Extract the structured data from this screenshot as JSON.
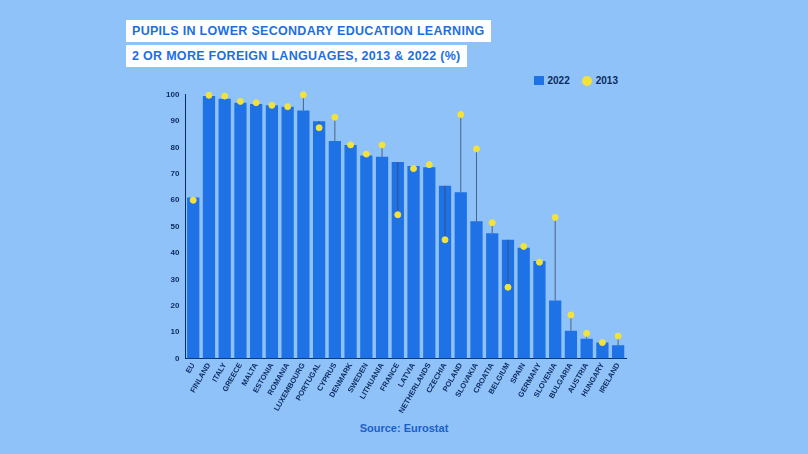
{
  "chart_data": {
    "type": "bar",
    "title": [
      "PUPILS IN LOWER SECONDARY EDUCATION LEARNING",
      "2 OR MORE FOREIGN LANGUAGES, 2013 & 2022 (%)"
    ],
    "source": "Source: Eurostat",
    "categories": [
      "EU",
      "FINLAND",
      "ITALY",
      "GREECE",
      "MALTA",
      "ESTONIA",
      "ROMANIA",
      "LUXEMBOURG",
      "PORTUGAL",
      "CYPRUS",
      "DENMARK",
      "SWEDEN",
      "LITHUANIA",
      "FRANCE",
      "LATVIA",
      "NETHERLANDS",
      "CZECHIA",
      "POLAND",
      "SLOVAKIA",
      "CROATIA",
      "BELGIUM",
      "SPAIN",
      "GERMANY",
      "SLOVENIA",
      "BULGARIA",
      "AUSTRIA",
      "HUNGARY",
      "IRELAND"
    ],
    "series": [
      {
        "name": "2022",
        "type": "bar",
        "color": "#1f72e6",
        "values": [
          61,
          99.5,
          98.5,
          97,
          96.5,
          96,
          95.5,
          94,
          90,
          82.5,
          81,
          77,
          76.5,
          74.5,
          73,
          72.5,
          65.5,
          63,
          52,
          47.5,
          45,
          42,
          37,
          22,
          10.5,
          7.5,
          6,
          5
        ]
      },
      {
        "name": "2013",
        "type": "scatter",
        "marker": "circle",
        "color": "#f3e23a",
        "values": [
          60,
          99.8,
          99.5,
          97.5,
          97,
          96,
          95.5,
          100,
          87.5,
          91.5,
          81,
          77.5,
          81,
          54.5,
          72,
          73.5,
          45,
          92.5,
          79.5,
          51.5,
          27,
          42.5,
          36.5,
          53.5,
          16.5,
          9.5,
          6,
          8.5
        ]
      }
    ],
    "ylim": [
      0,
      100
    ],
    "yticks": [
      0,
      10,
      20,
      30,
      40,
      50,
      60,
      70,
      80,
      90,
      100
    ],
    "grid": false,
    "legend": "upper right"
  }
}
